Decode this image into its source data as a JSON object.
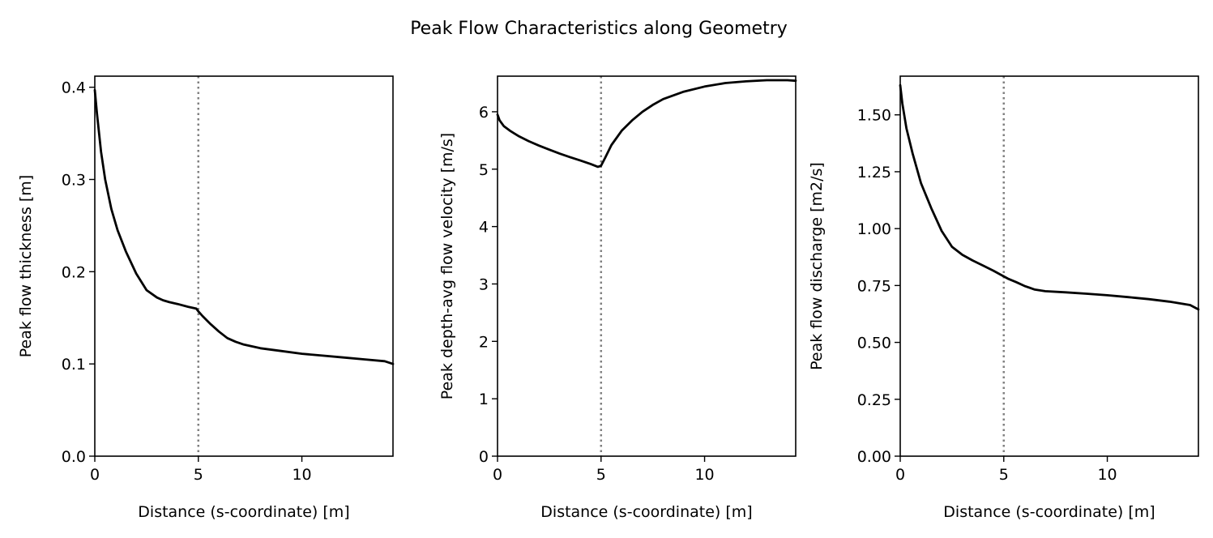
{
  "figure": {
    "suptitle": "Peak Flow Characteristics along Geometry"
  },
  "chart_data": [
    {
      "type": "line",
      "title": "",
      "xlabel": "Distance (s-coordinate) [m]",
      "ylabel": "Peak flow thickness [m]",
      "xlim": [
        0,
        14.4
      ],
      "ylim": [
        0,
        0.412
      ],
      "xticks": [
        0,
        5,
        10
      ],
      "xtick_labels": [
        "0",
        "5",
        "10"
      ],
      "yticks": [
        0,
        0.1,
        0.2,
        0.3,
        0.4
      ],
      "ytick_labels": [
        "0.0",
        "0.1",
        "0.2",
        "0.3",
        "0.4"
      ],
      "grid": false,
      "vline": {
        "x": 5,
        "style": "dotted",
        "color": "#808080"
      },
      "series": [
        {
          "name": "peak flow thickness",
          "color": "#000000",
          "x": [
            0,
            0.1,
            0.3,
            0.5,
            0.8,
            1.1,
            1.5,
            2,
            2.5,
            3,
            3.3,
            3.6,
            4,
            4.5,
            4.9,
            5,
            5.2,
            5.6,
            6,
            6.4,
            6.8,
            7.2,
            8,
            9,
            10,
            11,
            12,
            13,
            14,
            14.4
          ],
          "y": [
            0.397,
            0.372,
            0.33,
            0.3,
            0.268,
            0.245,
            0.222,
            0.198,
            0.18,
            0.172,
            0.169,
            0.167,
            0.165,
            0.162,
            0.16,
            0.157,
            0.152,
            0.143,
            0.135,
            0.128,
            0.124,
            0.121,
            0.117,
            0.114,
            0.111,
            0.109,
            0.107,
            0.105,
            0.103,
            0.1
          ]
        }
      ]
    },
    {
      "type": "line",
      "title": "",
      "xlabel": "Distance (s-coordinate) [m]",
      "ylabel": "Peak depth-avg flow velocity [m/s]",
      "xlim": [
        0,
        14.4
      ],
      "ylim": [
        0,
        6.62
      ],
      "xticks": [
        0,
        5,
        10
      ],
      "xtick_labels": [
        "0",
        "5",
        "10"
      ],
      "yticks": [
        0,
        1,
        2,
        3,
        4,
        5,
        6
      ],
      "ytick_labels": [
        "0",
        "1",
        "2",
        "3",
        "4",
        "5",
        "6"
      ],
      "grid": false,
      "vline": {
        "x": 5,
        "style": "dotted",
        "color": "#808080"
      },
      "series": [
        {
          "name": "peak depth-avg flow velocity",
          "color": "#000000",
          "x": [
            0,
            0.1,
            0.3,
            0.6,
            1,
            1.5,
            2,
            2.5,
            3,
            3.5,
            4,
            4.5,
            4.85,
            5,
            5.2,
            5.5,
            6,
            6.5,
            7,
            7.5,
            8,
            9,
            10,
            11,
            12,
            13,
            14,
            14.4
          ],
          "y": [
            5.95,
            5.85,
            5.75,
            5.67,
            5.58,
            5.49,
            5.41,
            5.34,
            5.27,
            5.21,
            5.15,
            5.09,
            5.04,
            5.06,
            5.2,
            5.42,
            5.67,
            5.85,
            6.0,
            6.12,
            6.22,
            6.35,
            6.44,
            6.5,
            6.53,
            6.55,
            6.55,
            6.54
          ]
        }
      ]
    },
    {
      "type": "line",
      "title": "",
      "xlabel": "Distance (s-coordinate) [m]",
      "ylabel": "Peak flow discharge [m2/s]",
      "xlim": [
        0,
        14.4
      ],
      "ylim": [
        0,
        1.67
      ],
      "xticks": [
        0,
        5,
        10
      ],
      "xtick_labels": [
        "0",
        "5",
        "10"
      ],
      "yticks": [
        0,
        0.25,
        0.5,
        0.75,
        1.0,
        1.25,
        1.5
      ],
      "ytick_labels": [
        "0.00",
        "0.25",
        "0.50",
        "0.75",
        "1.00",
        "1.25",
        "1.50"
      ],
      "grid": false,
      "vline": {
        "x": 5,
        "style": "dotted",
        "color": "#808080"
      },
      "series": [
        {
          "name": "peak flow discharge",
          "color": "#000000",
          "x": [
            0,
            0.1,
            0.3,
            0.6,
            1,
            1.5,
            2,
            2.5,
            3,
            3.5,
            4,
            4.5,
            5,
            5.2,
            5.6,
            6,
            6.5,
            7,
            8,
            9,
            10,
            11,
            12,
            13,
            14,
            14.4
          ],
          "y": [
            1.63,
            1.55,
            1.44,
            1.33,
            1.2,
            1.09,
            0.99,
            0.92,
            0.885,
            0.86,
            0.838,
            0.815,
            0.79,
            0.78,
            0.765,
            0.748,
            0.732,
            0.725,
            0.72,
            0.714,
            0.707,
            0.699,
            0.69,
            0.679,
            0.664,
            0.645
          ]
        }
      ]
    }
  ]
}
